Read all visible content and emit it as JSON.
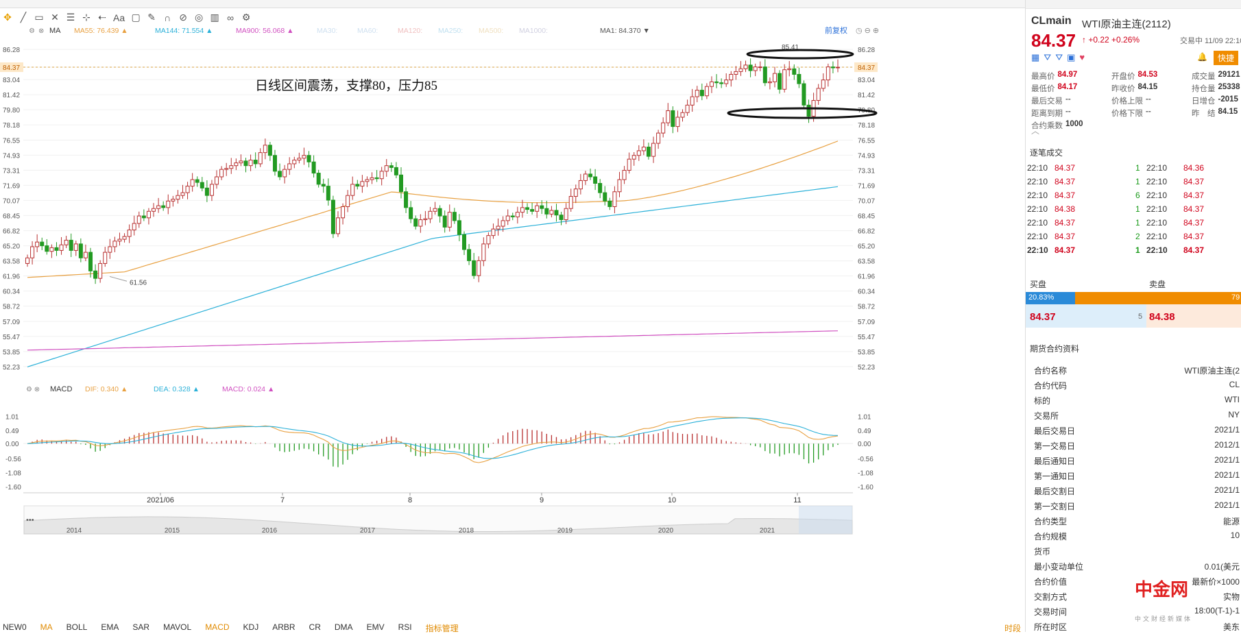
{
  "toolbar": {
    "icons": [
      "move-icon",
      "line-icon",
      "rect-icon",
      "cross-icon",
      "hlines-icon",
      "measure-icon",
      "arrow-icon",
      "text-icon",
      "comment-icon",
      "pen-icon",
      "magnet-icon",
      "lock-icon",
      "eye-icon",
      "trash-icon",
      "link-icon",
      "gear-icon"
    ],
    "text_tool": "Aa"
  },
  "ma_legend": {
    "name": "MA",
    "items": [
      {
        "label": "MA55: 76.439 ▲",
        "color": "#e8a040"
      },
      {
        "label": "MA144: 71.554 ▲",
        "color": "#2ab0d8"
      },
      {
        "label": "MA900: 56.068 ▲",
        "color": "#d050c0"
      },
      {
        "label": "MA30:",
        "color": "#cfe0f0"
      },
      {
        "label": "MA60:",
        "color": "#cfe0f0"
      },
      {
        "label": "MA120:",
        "color": "#f0c0c0"
      },
      {
        "label": "MA250:",
        "color": "#c0e0f0"
      },
      {
        "label": "MA500:",
        "color": "#f0e0c0"
      },
      {
        "label": "MA1000:",
        "color": "#d0d0e0"
      },
      {
        "label": "MA1: 84.370 ▼",
        "color": "#555555"
      }
    ],
    "restore": "前复权"
  },
  "macd_legend": {
    "name": "MACD",
    "items": [
      {
        "label": "DIF: 0.340 ▲",
        "color": "#e8a040"
      },
      {
        "label": "DEA: 0.328 ▲",
        "color": "#2ab0d8"
      },
      {
        "label": "MACD: 0.024 ▲",
        "color": "#d050c0"
      }
    ]
  },
  "annotation": "日线区间震荡，支撑80，压力85",
  "hi_label": "85.41",
  "lo_label": "61.56",
  "current_price": "84.37",
  "nav_years": [
    "2014",
    "2015",
    "2016",
    "2017",
    "2018",
    "2019",
    "2020",
    "2021"
  ],
  "bottom_tabs": [
    "NEW0",
    "MA",
    "BOLL",
    "EMA",
    "SAR",
    "MAVOL",
    "MACD",
    "KDJ",
    "ARBR",
    "CR",
    "DMA",
    "EMV",
    "RSI",
    "指标管理"
  ],
  "bottom_right": "时段",
  "chart_data": {
    "type": "candlestick",
    "x_labels": [
      "2021/06",
      "7",
      "8",
      "9",
      "10",
      "11"
    ],
    "y_ticks": [
      86.28,
      84.37,
      83.04,
      81.42,
      79.8,
      78.18,
      76.55,
      74.93,
      73.31,
      71.69,
      70.07,
      68.45,
      66.82,
      65.2,
      63.58,
      61.96,
      60.34,
      58.72,
      57.09,
      55.47,
      53.85,
      52.23
    ],
    "ylim": [
      52.0,
      86.8
    ],
    "macd_ticks": [
      1.01,
      0.49,
      0.0,
      -0.56,
      -1.08,
      -1.6
    ],
    "macd_ylim": [
      -1.75,
      1.2
    ],
    "closes": [
      63.9,
      65.1,
      65.6,
      65.2,
      64.6,
      65.0,
      64.7,
      65.3,
      65.8,
      64.7,
      65.4,
      63.9,
      64.5,
      62.5,
      61.7,
      63.3,
      64.5,
      65.1,
      65.7,
      65.9,
      66.2,
      66.9,
      67.6,
      68.4,
      68.2,
      68.9,
      69.2,
      69.5,
      69.3,
      70.0,
      70.2,
      70.6,
      70.9,
      71.6,
      72.3,
      72.0,
      71.4,
      70.6,
      71.8,
      72.6,
      73.4,
      73.5,
      73.8,
      74.1,
      74.3,
      73.8,
      74.4,
      74.0,
      75.2,
      76.0,
      74.9,
      73.2,
      72.6,
      73.4,
      74.0,
      74.4,
      74.6,
      74.9,
      74.2,
      73.0,
      71.8,
      71.6,
      70.1,
      66.5,
      68.2,
      69.4,
      70.6,
      71.8,
      71.6,
      72.1,
      72.3,
      72.5,
      72.4,
      73.2,
      73.8,
      73.6,
      72.8,
      71.0,
      69.3,
      68.1,
      67.3,
      68.0,
      68.1,
      68.9,
      69.2,
      68.4,
      67.2,
      68.8,
      67.9,
      66.4,
      64.8,
      63.6,
      62.0,
      63.6,
      65.4,
      66.3,
      67.0,
      67.3,
      67.9,
      68.4,
      68.3,
      68.8,
      69.3,
      69.1,
      68.9,
      69.5,
      69.2,
      68.6,
      69.0,
      68.5,
      68.0,
      69.2,
      70.5,
      71.3,
      72.2,
      72.9,
      72.6,
      71.9,
      70.9,
      70.0,
      69.4,
      71.0,
      72.3,
      73.3,
      74.5,
      74.9,
      75.4,
      75.8,
      74.8,
      76.2,
      77.3,
      78.4,
      79.7,
      78.0,
      79.0,
      79.5,
      80.3,
      81.2,
      81.9,
      81.3,
      82.3,
      82.8,
      82.7,
      82.6,
      83.0,
      83.6,
      83.9,
      84.2,
      84.6,
      84.0,
      84.4,
      84.4,
      82.7,
      82.8,
      83.7,
      82.0,
      84.1,
      84.2,
      83.6,
      82.6,
      80.3,
      79.1,
      80.8,
      82.1,
      83.0,
      84.4,
      84.3,
      84.37
    ],
    "ma55_range": [
      61.8,
      76.44
    ],
    "ma144_range": [
      52.2,
      71.55
    ],
    "ma900_range": [
      54.0,
      56.07
    ]
  }
}
